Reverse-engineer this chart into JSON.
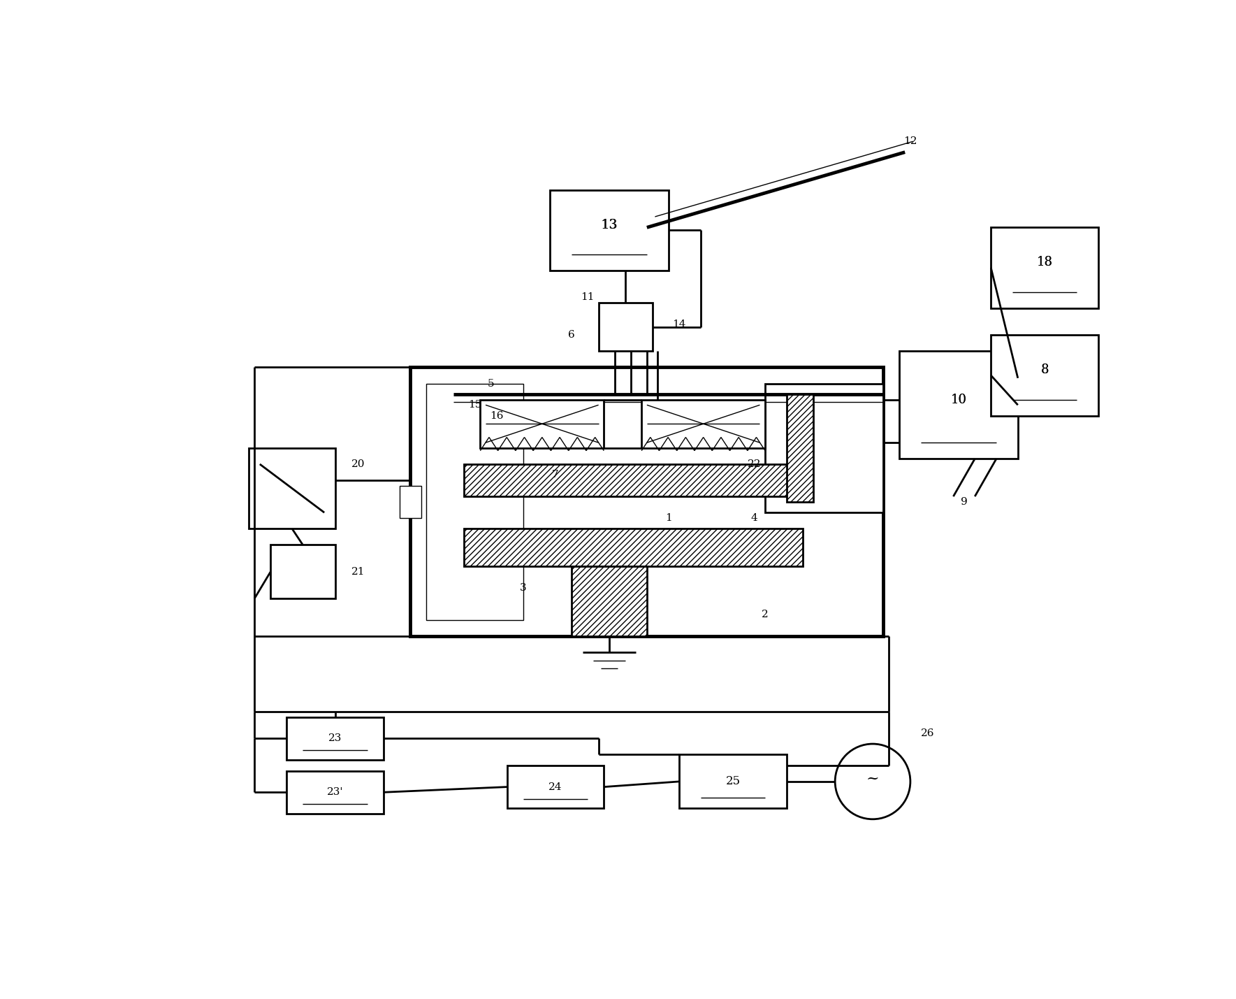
{
  "bg_color": "#ffffff",
  "lc": "#000000",
  "fig_width": 17.69,
  "fig_height": 14.29,
  "dpi": 100,
  "xlim": [
    0,
    177
  ],
  "ylim": [
    0,
    143
  ]
}
